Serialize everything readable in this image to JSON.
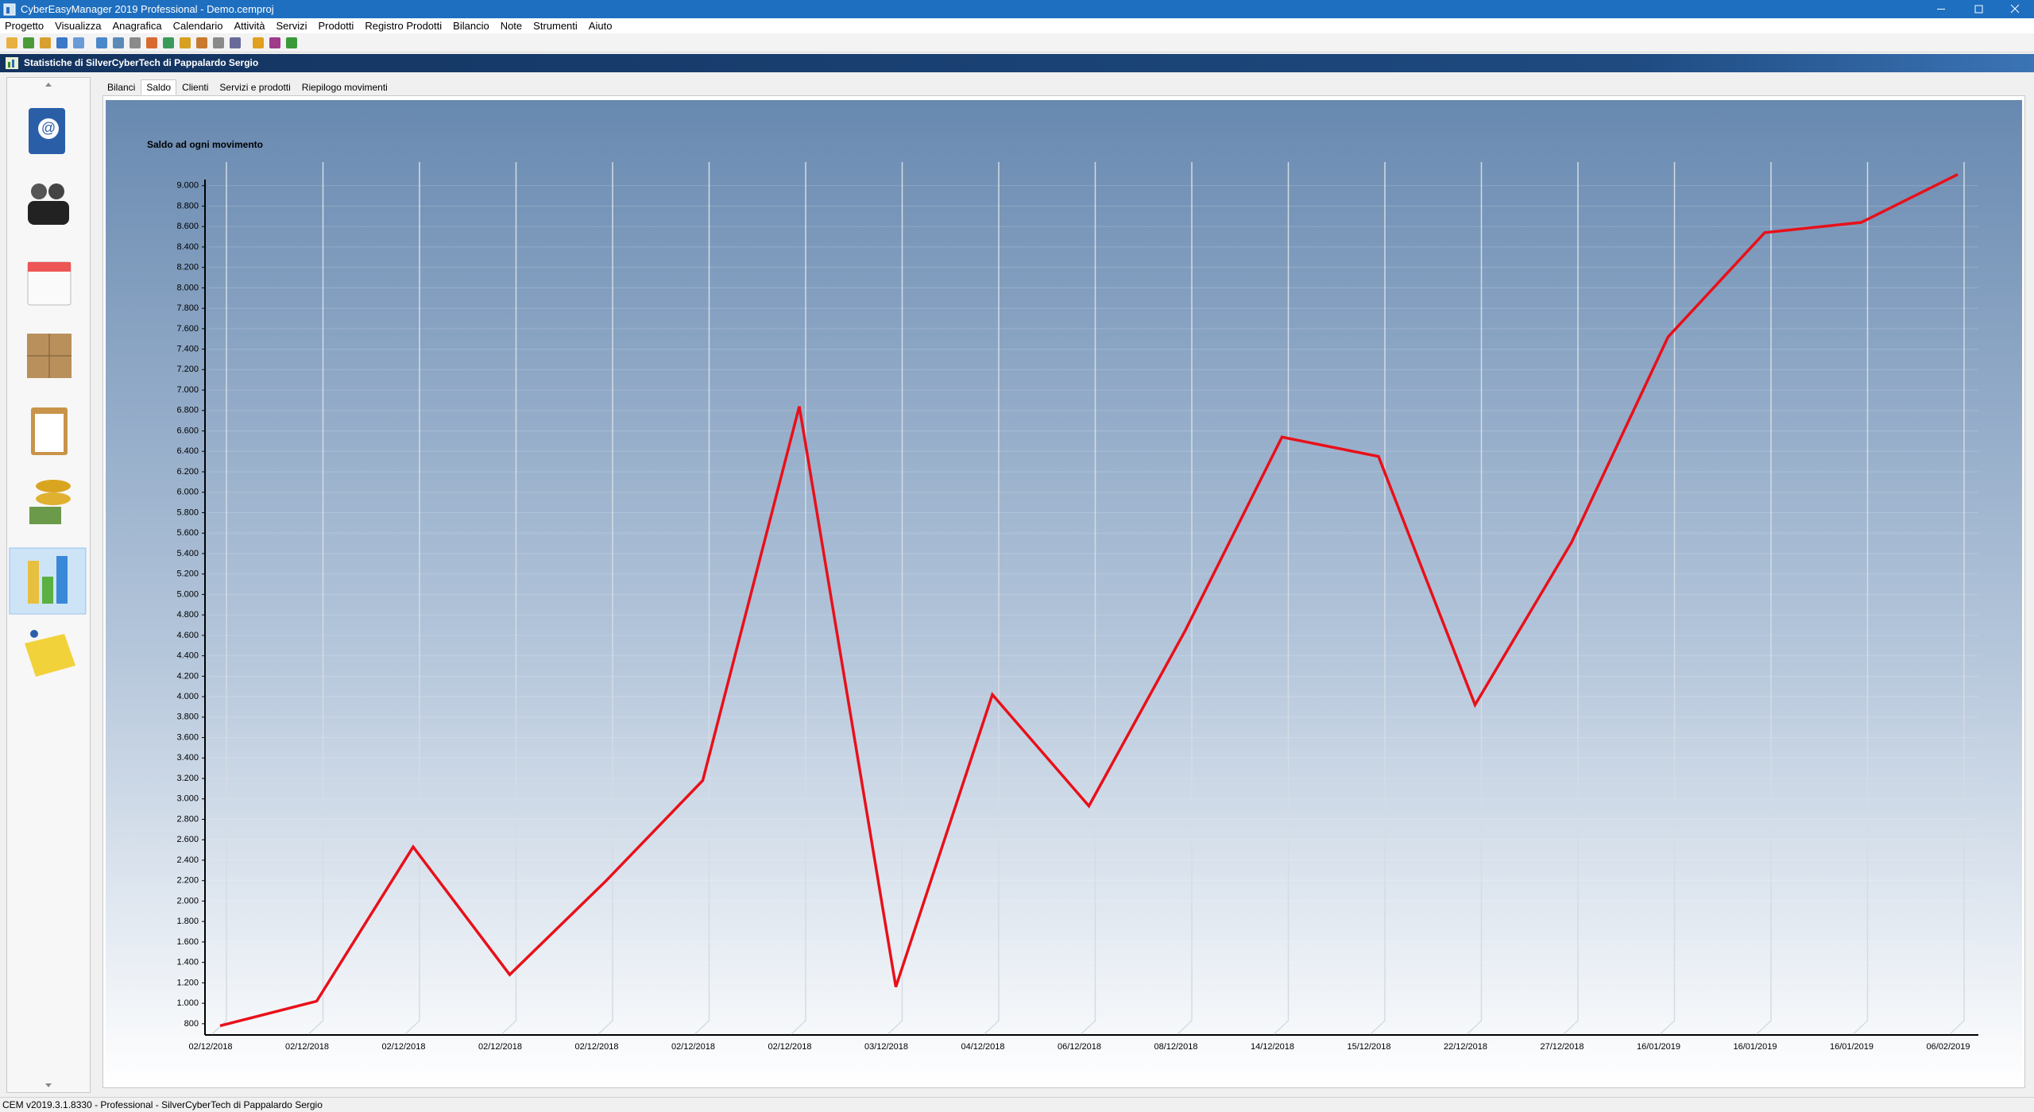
{
  "window": {
    "title": "CyberEasyManager 2019 Professional - Demo.cemproj"
  },
  "menu": [
    "Progetto",
    "Visualizza",
    "Anagrafica",
    "Calendario",
    "Attività",
    "Servizi",
    "Prodotti",
    "Registro Prodotti",
    "Bilancio",
    "Note",
    "Strumenti",
    "Aiuto"
  ],
  "header": {
    "title": "Statistiche di SilverCyberTech di Pappalardo Sergio"
  },
  "tabs": [
    "Bilanci",
    "Saldo",
    "Clienti",
    "Servizi e prodotti",
    "Riepilogo movimenti"
  ],
  "status_bar": "CEM v2019.3.1.8330 - Professional - SilverCyberTech di Pappalardo Sergio",
  "chart_data": {
    "type": "line",
    "title": "Saldo ad ogni movimento",
    "categories": [
      "02/12/2018",
      "02/12/2018",
      "02/12/2018",
      "02/12/2018",
      "02/12/2018",
      "02/12/2018",
      "02/12/2018",
      "03/12/2018",
      "04/12/2018",
      "06/12/2018",
      "08/12/2018",
      "14/12/2018",
      "15/12/2018",
      "22/12/2018",
      "27/12/2018",
      "16/01/2019",
      "16/01/2019",
      "16/01/2019",
      "06/02/2019"
    ],
    "values": [
      780,
      1020,
      2530,
      1280,
      2200,
      3180,
      6840,
      1160,
      4020,
      2930,
      4650,
      6540,
      6350,
      3920,
      5510,
      7520,
      8540,
      8640,
      9110
    ],
    "color": "#e8101a",
    "ylim": [
      690,
      9060
    ],
    "yticks": [
      800,
      {
        "value": 1000,
        "label": "1.000"
      },
      {
        "value": 1200,
        "label": "1.200"
      },
      {
        "value": 1400,
        "label": "1.400"
      },
      {
        "value": 1600,
        "label": "1.600"
      },
      {
        "value": 1800,
        "label": "1.800"
      },
      {
        "value": 2000,
        "label": "2.000"
      },
      {
        "value": 2200,
        "label": "2.200"
      },
      {
        "value": 2400,
        "label": "2.400"
      },
      {
        "value": 2600,
        "label": "2.600"
      },
      {
        "value": 2800,
        "label": "2.800"
      },
      {
        "value": 3000,
        "label": "3.000"
      },
      {
        "value": 3200,
        "label": "3.200"
      },
      {
        "value": 3400,
        "label": "3.400"
      },
      {
        "value": 3600,
        "label": "3.600"
      },
      {
        "value": 3800,
        "label": "3.800"
      },
      {
        "value": 4000,
        "label": "4.000"
      },
      {
        "value": 4200,
        "label": "4.200"
      },
      {
        "value": 4400,
        "label": "4.400"
      },
      {
        "value": 4600,
        "label": "4.600"
      },
      {
        "value": 4800,
        "label": "4.800"
      },
      {
        "value": 5000,
        "label": "5.000"
      },
      {
        "value": 5200,
        "label": "5.200"
      },
      {
        "value": 5400,
        "label": "5.400"
      },
      {
        "value": 5600,
        "label": "5.600"
      },
      {
        "value": 5800,
        "label": "5.800"
      },
      {
        "value": 6000,
        "label": "6.000"
      },
      {
        "value": 6200,
        "label": "6.200"
      },
      {
        "value": 6400,
        "label": "6.400"
      },
      {
        "value": 6600,
        "label": "6.600"
      },
      {
        "value": 6800,
        "label": "6.800"
      },
      {
        "value": 7000,
        "label": "7.000"
      },
      {
        "value": 7200,
        "label": "7.200"
      },
      {
        "value": 7400,
        "label": "7.400"
      },
      {
        "value": 7600,
        "label": "7.600"
      },
      {
        "value": 7800,
        "label": "7.800"
      },
      {
        "value": 8000,
        "label": "8.000"
      },
      {
        "value": 8200,
        "label": "8.200"
      },
      {
        "value": 8400,
        "label": "8.400"
      },
      {
        "value": 8600,
        "label": "8.600"
      },
      {
        "value": 8800,
        "label": "8.800"
      },
      {
        "value": 9000,
        "label": "9.000"
      }
    ],
    "grid": true
  }
}
